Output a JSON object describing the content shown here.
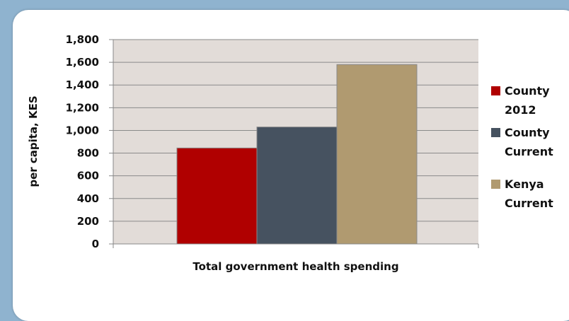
{
  "chart_data": {
    "type": "bar",
    "categories": [
      "Total government health spending"
    ],
    "series": [
      {
        "name": "County 2012",
        "values": [
          845
        ],
        "color": "#b00000"
      },
      {
        "name": "County Current",
        "values": [
          1030
        ],
        "color": "#465260"
      },
      {
        "name": "Kenya Current",
        "values": [
          1580
        ],
        "color": "#b09a70"
      }
    ],
    "xlabel": "Total government health spending",
    "ylabel": "per capita, KES",
    "ylim": [
      0,
      1800
    ],
    "yticks": [
      "0",
      "200",
      "400",
      "600",
      "800",
      "1,000",
      "1,200",
      "1,400",
      "1,600",
      "1,800"
    ],
    "grid": true,
    "legend_position": "right",
    "legend_lines": [
      [
        "County",
        "2012"
      ],
      [
        "County",
        "Current"
      ],
      [
        "Kenya",
        "Current"
      ]
    ],
    "plot_background": "#e2dcd8"
  }
}
